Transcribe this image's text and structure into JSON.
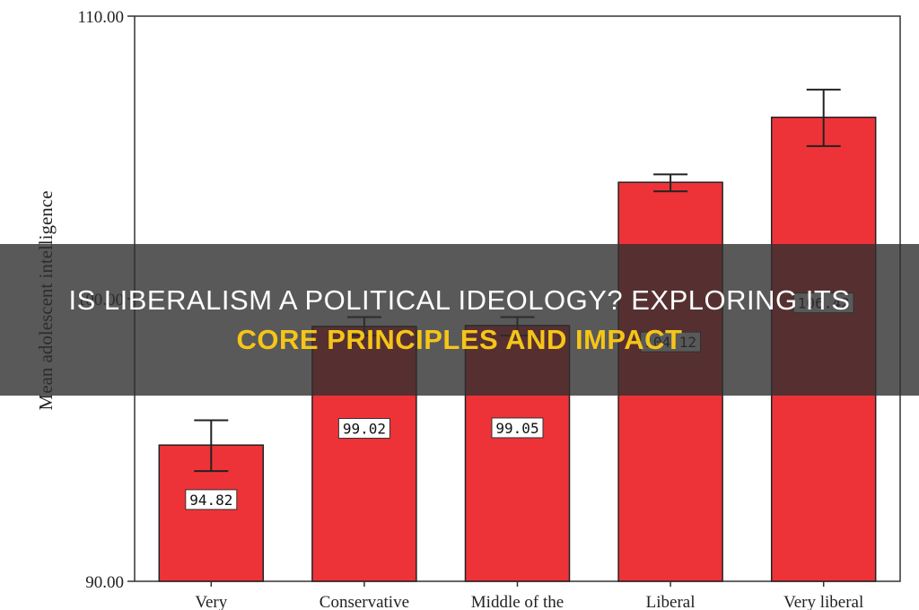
{
  "chart_data": {
    "type": "bar",
    "categories": [
      "Very",
      "Conservative",
      "Middle of the",
      "Liberal",
      "Very liberal"
    ],
    "values": [
      94.82,
      99.02,
      99.05,
      104.12,
      106.42
    ],
    "value_labels": [
      "94.82",
      "99.02",
      "99.05",
      "104.12",
      "106.42"
    ],
    "error_bars": [
      [
        93.9,
        95.7
      ],
      [
        98.7,
        99.35
      ],
      [
        98.7,
        99.35
      ],
      [
        103.8,
        104.4
      ],
      [
        105.4,
        107.4
      ]
    ],
    "title": "",
    "xlabel": "",
    "ylabel": "Mean adolescent intelligence",
    "ylim": [
      90,
      110
    ],
    "yticks": [
      90,
      100,
      110
    ],
    "ytick_labels": [
      "90.00",
      "100.00",
      "110.00"
    ],
    "grid": false,
    "bar_color": "#ee3338",
    "bar_edge_color": "#222222"
  },
  "banner": {
    "line1": "IS LIBERALISM A POLITICAL IDEOLOGY? EXPLORING ITS",
    "line2": "CORE PRINCIPLES AND IMPACT",
    "line1_color": "#ffffff",
    "line2_color": "#f5c518"
  }
}
